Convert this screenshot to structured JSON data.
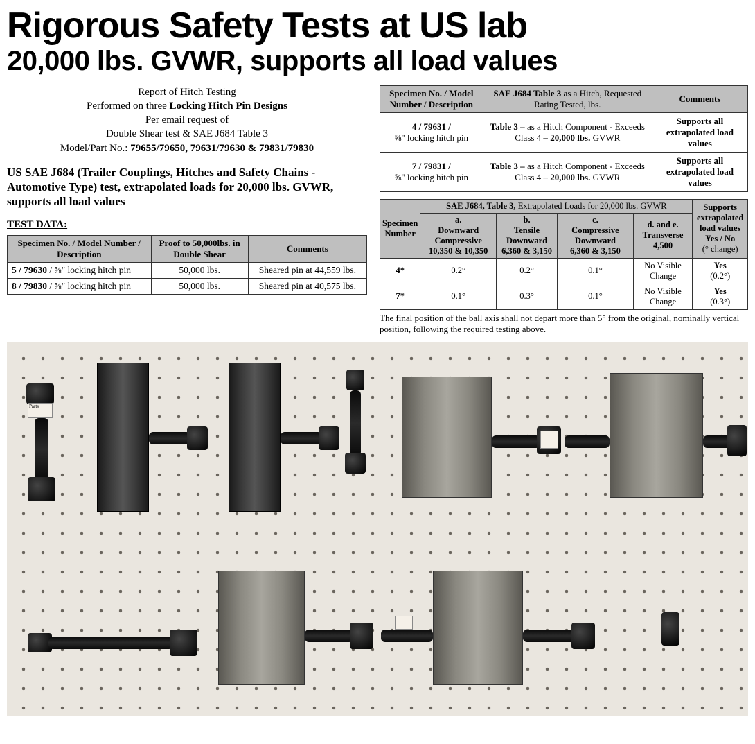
{
  "headline": "Rigorous Safety Tests at US lab",
  "subheadline": "20,000 lbs. GVWR, supports all load values",
  "intro": {
    "line1": "Report of Hitch Testing",
    "line2a": "Performed on three ",
    "line2b": "Locking Hitch Pin Designs",
    "line3": "Per email request of",
    "line4": "Double Shear test & SAE J684 Table 3",
    "line5a": "Model/Part No.: ",
    "line5b": "79655/79650, 79631/79630 & 79831/79830"
  },
  "test_heading": "US SAE J684 (Trailer Couplings, Hitches and Safety Chains - Automotive Type) test, extrapolated loads for 20,000 lbs. GVWR, supports all load values",
  "test_data_label": "TEST DATA:",
  "table1": {
    "headers": [
      "Specimen No. / Model Number / Description",
      "Proof to 50,000lbs. in Double Shear",
      "Comments"
    ],
    "rows": [
      {
        "spec": "5 / 79630 / ⅝\" locking hitch pin",
        "proof": "50,000 lbs.",
        "comment": "Sheared pin at 44,559 lbs."
      },
      {
        "spec": "8 / 79830 / ⅝\" locking hitch pin",
        "proof": "50,000 lbs.",
        "comment": "Sheared pin at 40,575 lbs."
      }
    ]
  },
  "table2": {
    "h1": "Specimen No. / Model Number / Description",
    "h2a": "SAE J684 Table 3 ",
    "h2b": "as a Hitch, Requested Rating Tested, lbs.",
    "h3": "Comments",
    "rows": [
      {
        "spec_a": "4 / 79631 /",
        "spec_b": "⅝\" locking hitch pin",
        "rating_a": "Table 3 – ",
        "rating_b": "as a Hitch Component - Exceeds Class 4 – ",
        "rating_c": "20,000 lbs. ",
        "rating_d": "GVWR",
        "comment": "Supports all extrapolated load values"
      },
      {
        "spec_a": "7 / 79831 /",
        "spec_b": "⅝\" locking hitch pin",
        "rating_a": "Table 3 – ",
        "rating_b": "as a Hitch Component - Exceeds Class 4 – ",
        "rating_c": "20,000 lbs. ",
        "rating_d": "GVWR",
        "comment": "Supports all extrapolated load values"
      }
    ]
  },
  "table3": {
    "top_header_a": "SAE J684, Table 3, ",
    "top_header_b": "Extrapolated Loads for 20,000 lbs. GVWR",
    "spec_header": "Specimen Number",
    "cols": [
      {
        "l1": "a.",
        "l2": "Downward Compressive",
        "l3": "10,350 & 10,350"
      },
      {
        "l1": "b.",
        "l2": "Tensile Downward",
        "l3": "6,360 & 3,150"
      },
      {
        "l1": "c.",
        "l2": "Compressive Downward",
        "l3": "6,360 & 3,150"
      },
      {
        "l1": "d. and e.",
        "l2": "Transverse",
        "l3": "4,500"
      }
    ],
    "supports_header_a": "Supports extrapolated load values",
    "supports_header_b": "Yes / No",
    "supports_header_c": "(° change)",
    "rows": [
      {
        "spec": "4*",
        "a": "0.2°",
        "b": "0.2°",
        "c": "0.1°",
        "d": "No Visible Change",
        "s1": "Yes",
        "s2": "(0.2°)"
      },
      {
        "spec": "7*",
        "a": "0.1°",
        "b": "0.3°",
        "c": "0.1°",
        "d": "No Visible Change",
        "s1": "Yes",
        "s2": "(0.3°)"
      }
    ]
  },
  "footnote_a": "The final position of the ",
  "footnote_b": "ball axis",
  "footnote_c": " shall not depart more than 5° from the original, nominally vertical position, following the required testing above."
}
